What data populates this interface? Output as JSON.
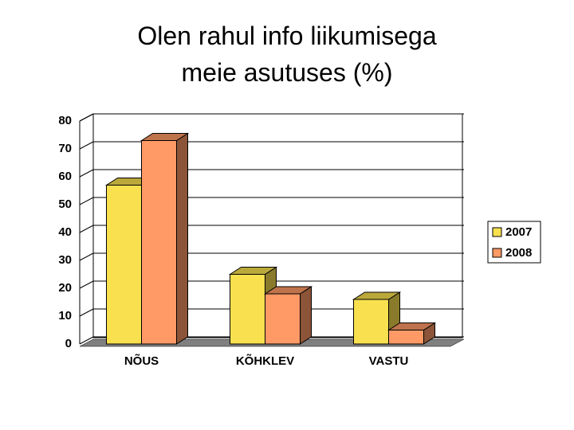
{
  "chart_data": {
    "type": "bar3d",
    "title": "Olen rahul info liikumisega meie asutuses (%)",
    "categories": [
      "NÕUS",
      "KÕHKLEV",
      "VASTU"
    ],
    "series": [
      {
        "name": "2007",
        "color": "#f9e04f",
        "values": [
          57,
          25,
          16
        ]
      },
      {
        "name": "2008",
        "color": "#ff9966",
        "values": [
          73,
          18,
          5
        ]
      }
    ],
    "ylim": [
      0,
      80
    ],
    "yticks": [
      0,
      10,
      20,
      30,
      40,
      50,
      60,
      70,
      80
    ],
    "grid": true,
    "legend": "right"
  }
}
